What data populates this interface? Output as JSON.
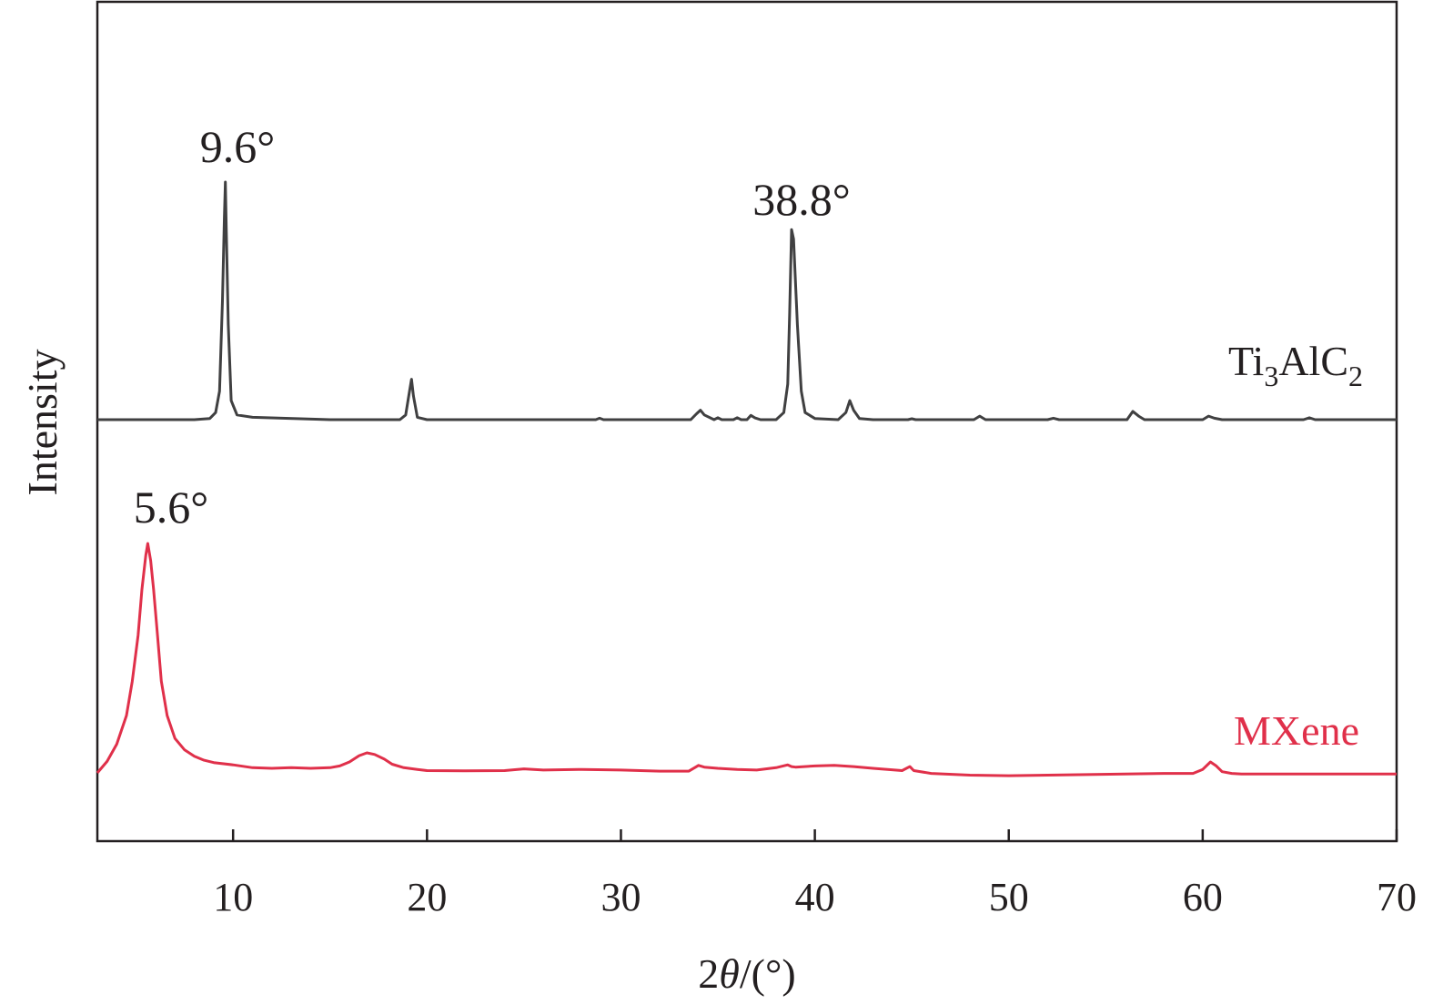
{
  "chart_data": {
    "type": "line",
    "xlabel_prefix": "2",
    "xlabel_theta": "θ",
    "xlabel_suffix": "/(°)",
    "ylabel": "Intensity",
    "xlim": [
      3,
      70
    ],
    "xticks": [
      10,
      20,
      30,
      40,
      50,
      60,
      70
    ],
    "yticks_shown": false,
    "grid": false,
    "series": [
      {
        "label_main": "Ti",
        "label_sub1": "3",
        "label_mid": "AlC",
        "label_sub2": "2",
        "color": "#404041",
        "x": [
          3,
          8,
          8.8,
          9.1,
          9.3,
          9.45,
          9.55,
          9.6,
          9.65,
          9.75,
          9.9,
          10.2,
          11,
          15,
          18.6,
          18.9,
          19.1,
          19.2,
          19.3,
          19.5,
          20,
          28.7,
          28.9,
          29.1,
          33.6,
          33.9,
          34.1,
          34.3,
          34.8,
          35,
          35.2,
          35.8,
          36,
          36.2,
          36.5,
          36.7,
          36.9,
          37.2,
          38,
          38.4,
          38.6,
          38.7,
          38.8,
          38.9,
          39,
          39.1,
          39.3,
          39.5,
          40,
          41.2,
          41.6,
          41.8,
          42,
          42.3,
          43,
          44.8,
          45,
          45.2,
          48.2,
          48.5,
          48.8,
          52,
          52.3,
          52.6,
          56.1,
          56.4,
          56.7,
          57,
          60,
          60.3,
          60.6,
          61,
          65.2,
          65.5,
          65.8,
          70
        ],
        "y": [
          0,
          0,
          0.5,
          3,
          12,
          50,
          85,
          100,
          80,
          40,
          8,
          2,
          1,
          0,
          0,
          2,
          12,
          17,
          10,
          1,
          0,
          0,
          0.6,
          0,
          0,
          2.5,
          4,
          2,
          0,
          0.8,
          0,
          0,
          0.8,
          0,
          0,
          1.8,
          0.8,
          0,
          0,
          3,
          15,
          45,
          80,
          76,
          58,
          40,
          12,
          3,
          0.5,
          0,
          3,
          8,
          4,
          0.5,
          0,
          0,
          0.4,
          0,
          0,
          1.5,
          0,
          0,
          0.6,
          0,
          0,
          3.5,
          1.5,
          0,
          0,
          1.5,
          0.6,
          0,
          0,
          0.8,
          0,
          0
        ]
      },
      {
        "label": "MXene",
        "color": "#e0304a",
        "x": [
          3,
          3.5,
          4,
          4.5,
          4.8,
          5.1,
          5.3,
          5.5,
          5.6,
          5.75,
          5.9,
          6.1,
          6.3,
          6.6,
          7,
          7.5,
          8,
          8.5,
          9,
          10,
          11,
          12,
          13,
          14,
          15,
          15.5,
          16,
          16.5,
          16.9,
          17.3,
          17.8,
          18.2,
          18.8,
          19.5,
          20,
          22,
          24,
          25,
          26,
          28,
          30,
          32,
          33.5,
          33.8,
          34,
          34.3,
          35,
          36,
          37,
          38,
          38.6,
          38.8,
          39,
          40,
          41,
          42,
          43,
          44.5,
          44.9,
          45.1,
          46,
          48,
          50,
          52,
          54,
          56,
          58,
          59.5,
          60,
          60.4,
          60.7,
          61,
          61.5,
          62,
          64,
          66,
          70
        ],
        "y": [
          0,
          2,
          5,
          10,
          16,
          24,
          32,
          38,
          40,
          37,
          32,
          24,
          16,
          10,
          6,
          4,
          2.9,
          2.2,
          1.8,
          1.4,
          0.9,
          0.8,
          0.9,
          0.8,
          0.9,
          1.2,
          1.9,
          3,
          3.5,
          3.2,
          2.4,
          1.5,
          0.9,
          0.6,
          0.4,
          0.35,
          0.4,
          0.7,
          0.5,
          0.6,
          0.5,
          0.3,
          0.3,
          0.9,
          1.3,
          1,
          0.8,
          0.6,
          0.5,
          0.9,
          1.4,
          1.1,
          1,
          1.2,
          1.3,
          1.1,
          0.8,
          0.4,
          1.1,
          0.4,
          -0.1,
          -0.4,
          -0.5,
          -0.4,
          -0.3,
          -0.2,
          -0.1,
          -0.1,
          0.6,
          1.9,
          1.2,
          0.2,
          -0.1,
          -0.2,
          -0.2,
          -0.2,
          -0.2
        ]
      }
    ],
    "annotations": [
      {
        "text": "9.6°"
      },
      {
        "text": "38.8°"
      },
      {
        "text": "5.6°"
      }
    ]
  }
}
